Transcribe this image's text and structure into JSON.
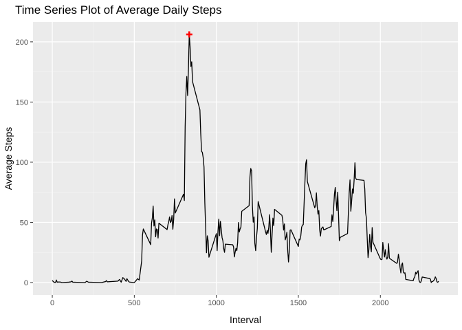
{
  "chart_data": {
    "type": "line",
    "title": "Time Series Plot of Average Daily Steps",
    "xlabel": "Interval",
    "ylabel": "Average Steps",
    "xlim": [
      -117.5,
      2472.5
    ],
    "ylim": [
      -10.3,
      216.5
    ],
    "x_ticks": [
      0,
      500,
      1000,
      1500,
      2000
    ],
    "y_ticks": [
      0,
      50,
      100,
      150,
      200
    ],
    "x_tick_labels": [
      "0",
      "500",
      "1000",
      "1500",
      "2000"
    ],
    "y_tick_labels": [
      "0",
      "50",
      "100",
      "150",
      "200"
    ],
    "grid": true,
    "series": [
      {
        "color": "#000000",
        "points": [
          [
            0,
            1.7
          ],
          [
            10,
            0.3
          ],
          [
            20,
            0.1
          ],
          [
            25,
            2.1
          ],
          [
            30,
            0.3
          ],
          [
            40,
            0.5
          ],
          [
            50,
            0.4
          ],
          [
            55,
            0.1
          ],
          [
            60,
            0.0
          ],
          [
            100,
            0.3
          ],
          [
            115,
            0.6
          ],
          [
            120,
            1.2
          ],
          [
            125,
            0.3
          ],
          [
            150,
            0.2
          ],
          [
            200,
            0.0
          ],
          [
            210,
            1.1
          ],
          [
            220,
            0.3
          ],
          [
            250,
            0.2
          ],
          [
            300,
            0.0
          ],
          [
            325,
            0.8
          ],
          [
            330,
            1.6
          ],
          [
            335,
            0.6
          ],
          [
            400,
            1.2
          ],
          [
            410,
            2.6
          ],
          [
            420,
            0.3
          ],
          [
            430,
            4.1
          ],
          [
            440,
            2.9
          ],
          [
            450,
            1.0
          ],
          [
            455,
            3.2
          ],
          [
            460,
            2.1
          ],
          [
            465,
            1.0
          ],
          [
            470,
            0.4
          ],
          [
            500,
            0.0
          ],
          [
            510,
            1.5
          ],
          [
            520,
            3.2
          ],
          [
            530,
            2.1
          ],
          [
            545,
            18.0
          ],
          [
            550,
            39.5
          ],
          [
            555,
            44.5
          ],
          [
            600,
            31.5
          ],
          [
            605,
            49.3
          ],
          [
            610,
            53.8
          ],
          [
            615,
            63.5
          ],
          [
            620,
            47.0
          ],
          [
            625,
            52.0
          ],
          [
            630,
            38.0
          ],
          [
            635,
            44.5
          ],
          [
            640,
            44.0
          ],
          [
            645,
            37.0
          ],
          [
            650,
            49.3
          ],
          [
            700,
            44.0
          ],
          [
            705,
            48.0
          ],
          [
            710,
            50.6
          ],
          [
            715,
            54.5
          ],
          [
            720,
            49.9
          ],
          [
            725,
            50.9
          ],
          [
            730,
            55.7
          ],
          [
            735,
            44.3
          ],
          [
            740,
            52.3
          ],
          [
            745,
            69.5
          ],
          [
            750,
            57.8
          ],
          [
            800,
            73.4
          ],
          [
            805,
            68.2
          ],
          [
            810,
            129.4
          ],
          [
            815,
            157.5
          ],
          [
            820,
            171.2
          ],
          [
            825,
            155.4
          ],
          [
            830,
            177.3
          ],
          [
            835,
            206.2
          ],
          [
            840,
            195.9
          ],
          [
            845,
            179.6
          ],
          [
            850,
            183.4
          ],
          [
            855,
            167.0
          ],
          [
            900,
            143.5
          ],
          [
            905,
            124.0
          ],
          [
            910,
            109.1
          ],
          [
            915,
            108.1
          ],
          [
            920,
            103.7
          ],
          [
            925,
            95.9
          ],
          [
            930,
            66.2
          ],
          [
            935,
            45.2
          ],
          [
            940,
            24.8
          ],
          [
            945,
            38.8
          ],
          [
            950,
            34.9
          ],
          [
            955,
            21.1
          ],
          [
            1000,
            40.6
          ],
          [
            1005,
            26.5
          ],
          [
            1010,
            42.4
          ],
          [
            1015,
            52.7
          ],
          [
            1020,
            38.9
          ],
          [
            1025,
            50.8
          ],
          [
            1030,
            44.3
          ],
          [
            1035,
            37.4
          ],
          [
            1040,
            34.7
          ],
          [
            1045,
            28.3
          ],
          [
            1050,
            25.1
          ],
          [
            1055,
            31.9
          ],
          [
            1100,
            31.4
          ],
          [
            1105,
            29.7
          ],
          [
            1110,
            21.3
          ],
          [
            1115,
            25.5
          ],
          [
            1120,
            28.4
          ],
          [
            1125,
            26.5
          ],
          [
            1130,
            33.4
          ],
          [
            1135,
            49.9
          ],
          [
            1140,
            42.0
          ],
          [
            1145,
            44.6
          ],
          [
            1150,
            46.0
          ],
          [
            1155,
            59.2
          ],
          [
            1200,
            63.9
          ],
          [
            1205,
            87.7
          ],
          [
            1210,
            94.8
          ],
          [
            1215,
            92.8
          ],
          [
            1220,
            63.4
          ],
          [
            1225,
            50.2
          ],
          [
            1230,
            54.5
          ],
          [
            1235,
            32.4
          ],
          [
            1240,
            26.5
          ],
          [
            1245,
            37.7
          ],
          [
            1250,
            45.1
          ],
          [
            1255,
            67.3
          ],
          [
            1300,
            42.3
          ],
          [
            1305,
            39.9
          ],
          [
            1310,
            43.3
          ],
          [
            1315,
            40.9
          ],
          [
            1320,
            46.2
          ],
          [
            1325,
            56.4
          ],
          [
            1330,
            42.8
          ],
          [
            1335,
            25.1
          ],
          [
            1340,
            39.9
          ],
          [
            1345,
            53.5
          ],
          [
            1350,
            47.3
          ],
          [
            1355,
            60.8
          ],
          [
            1400,
            55.8
          ],
          [
            1405,
            51.9
          ],
          [
            1410,
            43.6
          ],
          [
            1415,
            48.7
          ],
          [
            1420,
            35.5
          ],
          [
            1425,
            37.5
          ],
          [
            1430,
            41.8
          ],
          [
            1435,
            27.5
          ],
          [
            1440,
            17.1
          ],
          [
            1445,
            26.1
          ],
          [
            1450,
            43.6
          ],
          [
            1455,
            43.8
          ],
          [
            1500,
            30.0
          ],
          [
            1505,
            36.1
          ],
          [
            1510,
            35.5
          ],
          [
            1515,
            38.8
          ],
          [
            1520,
            45.9
          ],
          [
            1525,
            47.8
          ],
          [
            1530,
            48.1
          ],
          [
            1535,
            65.3
          ],
          [
            1540,
            82.9
          ],
          [
            1545,
            98.7
          ],
          [
            1550,
            102.1
          ],
          [
            1555,
            83.9
          ],
          [
            1600,
            62.1
          ],
          [
            1605,
            64.1
          ],
          [
            1610,
            74.5
          ],
          [
            1615,
            63.2
          ],
          [
            1620,
            56.9
          ],
          [
            1625,
            59.8
          ],
          [
            1630,
            43.9
          ],
          [
            1635,
            38.6
          ],
          [
            1640,
            44.7
          ],
          [
            1645,
            45.5
          ],
          [
            1650,
            46.2
          ],
          [
            1655,
            43.7
          ],
          [
            1700,
            46.6
          ],
          [
            1705,
            56.3
          ],
          [
            1710,
            50.7
          ],
          [
            1715,
            61.2
          ],
          [
            1720,
            73.4
          ],
          [
            1725,
            79.0
          ],
          [
            1730,
            68.9
          ],
          [
            1735,
            59.7
          ],
          [
            1740,
            75.1
          ],
          [
            1745,
            56.5
          ],
          [
            1750,
            34.8
          ],
          [
            1755,
            37.5
          ],
          [
            1800,
            40.7
          ],
          [
            1805,
            58.0
          ],
          [
            1810,
            74.7
          ],
          [
            1815,
            85.3
          ],
          [
            1820,
            59.3
          ],
          [
            1825,
            67.8
          ],
          [
            1830,
            77.7
          ],
          [
            1835,
            74.2
          ],
          [
            1840,
            85.3
          ],
          [
            1845,
            99.5
          ],
          [
            1850,
            86.6
          ],
          [
            1855,
            85.6
          ],
          [
            1900,
            84.9
          ],
          [
            1905,
            77.8
          ],
          [
            1910,
            58.0
          ],
          [
            1915,
            53.4
          ],
          [
            1920,
            36.3
          ],
          [
            1925,
            20.7
          ],
          [
            1930,
            27.4
          ],
          [
            1935,
            40.0
          ],
          [
            1940,
            30.2
          ],
          [
            1945,
            25.5
          ],
          [
            1950,
            45.7
          ],
          [
            1955,
            33.5
          ],
          [
            2000,
            19.6
          ],
          [
            2005,
            19.0
          ],
          [
            2010,
            19.3
          ],
          [
            2015,
            33.3
          ],
          [
            2020,
            26.8
          ],
          [
            2025,
            21.2
          ],
          [
            2030,
            27.3
          ],
          [
            2035,
            21.3
          ],
          [
            2040,
            19.5
          ],
          [
            2045,
            21.3
          ],
          [
            2050,
            32.3
          ],
          [
            2055,
            20.2
          ],
          [
            2100,
            15.9
          ],
          [
            2105,
            17.2
          ],
          [
            2110,
            23.5
          ],
          [
            2115,
            19.2
          ],
          [
            2120,
            12.5
          ],
          [
            2125,
            8.0
          ],
          [
            2130,
            14.7
          ],
          [
            2135,
            16.3
          ],
          [
            2140,
            8.7
          ],
          [
            2145,
            7.8
          ],
          [
            2150,
            8.1
          ],
          [
            2155,
            2.6
          ],
          [
            2200,
            1.5
          ],
          [
            2205,
            3.7
          ],
          [
            2210,
            4.8
          ],
          [
            2215,
            8.5
          ],
          [
            2220,
            7.1
          ],
          [
            2225,
            8.7
          ],
          [
            2230,
            9.8
          ],
          [
            2235,
            2.2
          ],
          [
            2240,
            0.3
          ],
          [
            2245,
            0.1
          ],
          [
            2250,
            1.6
          ],
          [
            2255,
            4.6
          ],
          [
            2300,
            3.3
          ],
          [
            2305,
            2.8
          ],
          [
            2310,
            0.0
          ],
          [
            2315,
            0.8
          ],
          [
            2320,
            1.0
          ],
          [
            2325,
            1.6
          ],
          [
            2330,
            2.6
          ],
          [
            2335,
            4.7
          ],
          [
            2340,
            3.3
          ],
          [
            2345,
            0.6
          ],
          [
            2350,
            0.2
          ],
          [
            2355,
            1.1
          ]
        ]
      }
    ],
    "highlight": {
      "x": 835,
      "y": 206.2,
      "color": "#ff0000"
    }
  }
}
